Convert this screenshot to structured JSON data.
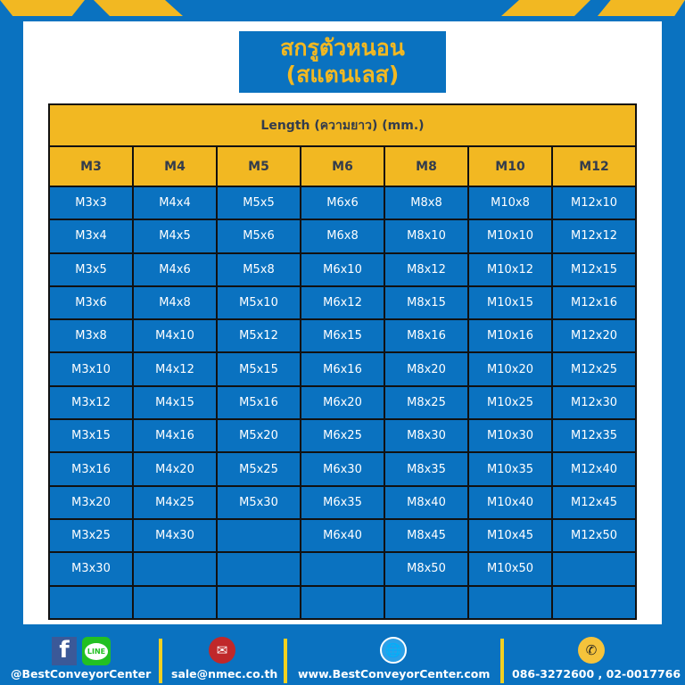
{
  "title": {
    "line1": "สกรูตัวหนอน",
    "line2": "(สแตนเลส)"
  },
  "table": {
    "caption": "Length (ความยาว) (mm.)",
    "columns": [
      "M3",
      "M4",
      "M5",
      "M6",
      "M8",
      "M10",
      "M12"
    ],
    "rows": [
      [
        "M3x3",
        "M4x4",
        "M5x5",
        "M6x6",
        "M8x8",
        "M10x8",
        "M12x10"
      ],
      [
        "M3x4",
        "M4x5",
        "M5x6",
        "M6x8",
        "M8x10",
        "M10x10",
        "M12x12"
      ],
      [
        "M3x5",
        "M4x6",
        "M5x8",
        "M6x10",
        "M8x12",
        "M10x12",
        "M12x15"
      ],
      [
        "M3x6",
        "M4x8",
        "M5x10",
        "M6x12",
        "M8x15",
        "M10x15",
        "M12x16"
      ],
      [
        "M3x8",
        "M4x10",
        "M5x12",
        "M6x15",
        "M8x16",
        "M10x16",
        "M12x20"
      ],
      [
        "M3x10",
        "M4x12",
        "M5x15",
        "M6x16",
        "M8x20",
        "M10x20",
        "M12x25"
      ],
      [
        "M3x12",
        "M4x15",
        "M5x16",
        "M6x20",
        "M8x25",
        "M10x25",
        "M12x30"
      ],
      [
        "M3x15",
        "M4x16",
        "M5x20",
        "M6x25",
        "M8x30",
        "M10x30",
        "M12x35"
      ],
      [
        "M3x16",
        "M4x20",
        "M5x25",
        "M6x30",
        "M8x35",
        "M10x35",
        "M12x40"
      ],
      [
        "M3x20",
        "M4x25",
        "M5x30",
        "M6x35",
        "M8x40",
        "M10x40",
        "M12x45"
      ],
      [
        "M3x25",
        "M4x30",
        "",
        "M6x40",
        "M8x45",
        "M10x45",
        "M12x50"
      ],
      [
        "M3x30",
        "",
        "",
        "",
        "M8x50",
        "M10x50",
        ""
      ],
      [
        "",
        "",
        "",
        "",
        "",
        "",
        ""
      ]
    ]
  },
  "footer": {
    "social": "@BestConveyorCenter",
    "email": "sale@nmec.co.th",
    "website": "www.BestConveyorCenter.com",
    "phone": "086-3272600 , 02-0017766",
    "line_label": "LINE"
  },
  "colors": {
    "blue": "#0a72c0",
    "yellow": "#f2b822"
  }
}
